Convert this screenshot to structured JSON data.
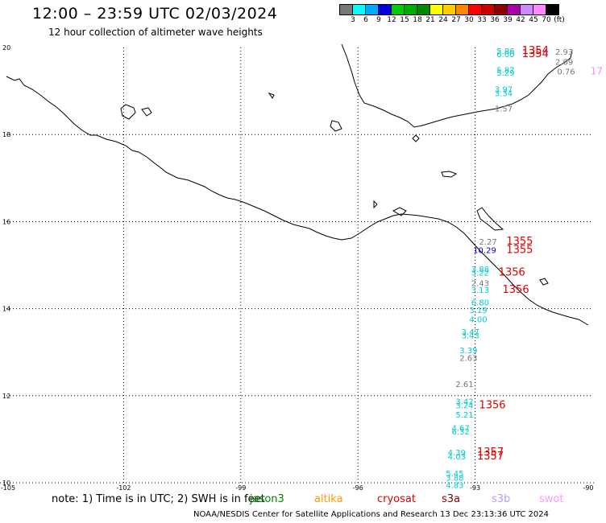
{
  "title": "12:00 – 23:59 UTC 02/03/2024",
  "subtitle": "12 hour collection of altimeter wave heights",
  "scale": {
    "unit": "(ft)",
    "colors": [
      "#777777",
      "#00ffff",
      "#00aaff",
      "#0000dd",
      "#00cc00",
      "#00aa00",
      "#008800",
      "#ffff00",
      "#ffcc00",
      "#ff8800",
      "#ff0000",
      "#cc0000",
      "#880000",
      "#aa00aa",
      "#cc88ff",
      "#ff88ff",
      "#000000"
    ],
    "labels": [
      "3",
      "6",
      "9",
      "12",
      "15",
      "18",
      "21",
      "24",
      "27",
      "30",
      "33",
      "36",
      "39",
      "42",
      "45",
      "70"
    ]
  },
  "map": {
    "lon_labels": [
      "-105",
      "-102",
      "-99",
      "-96",
      "-93",
      "-90"
    ],
    "lat_labels": [
      "20",
      "18",
      "16",
      "14",
      "12",
      "10"
    ]
  },
  "observations": [
    {
      "text": "5.86",
      "lon": -92.45,
      "lat": 19.85,
      "color": "#00cccc"
    },
    {
      "text": "6.00",
      "lon": -92.45,
      "lat": 19.78,
      "color": "#00cccc"
    },
    {
      "text": "1354",
      "lon": -91.8,
      "lat": 19.85,
      "color": "#dd0000"
    },
    {
      "text": "1354",
      "lon": -91.8,
      "lat": 19.78,
      "color": "#dd0000"
    },
    {
      "text": "2.93",
      "lon": -90.95,
      "lat": 19.83,
      "color": "#777777"
    },
    {
      "text": "2.09",
      "lon": -90.95,
      "lat": 19.6,
      "color": "#777777"
    },
    {
      "text": "0.76",
      "lon": -90.9,
      "lat": 19.38,
      "color": "#777777"
    },
    {
      "text": "17",
      "lon": -90.05,
      "lat": 19.38,
      "color": "#ff88ff"
    },
    {
      "text": "5.87",
      "lon": -92.45,
      "lat": 19.42,
      "color": "#00cccc"
    },
    {
      "text": "5.29",
      "lon": -92.45,
      "lat": 19.35,
      "color": "#00cccc"
    },
    {
      "text": "3.97",
      "lon": -92.5,
      "lat": 18.97,
      "color": "#00cccc"
    },
    {
      "text": "3.34",
      "lon": -92.5,
      "lat": 18.88,
      "color": "#00cccc"
    },
    {
      "text": "1.57",
      "lon": -92.5,
      "lat": 18.53,
      "color": "#777777"
    },
    {
      "text": "2.27",
      "lon": -92.9,
      "lat": 15.47,
      "color": "#777777"
    },
    {
      "text": "1355",
      "lon": -92.2,
      "lat": 15.47,
      "color": "#dd0000"
    },
    {
      "text": "10.29",
      "lon": -93.05,
      "lat": 15.28,
      "color": "#0000cc"
    },
    {
      "text": "1355",
      "lon": -92.2,
      "lat": 15.28,
      "color": "#dd0000"
    },
    {
      "text": "3.88",
      "lon": -93.1,
      "lat": 14.84,
      "color": "#00cccc"
    },
    {
      "text": "3.22",
      "lon": -93.1,
      "lat": 14.76,
      "color": "#00cccc"
    },
    {
      "text": "1356",
      "lon": -92.4,
      "lat": 14.76,
      "color": "#dd0000"
    },
    {
      "text": "2.43",
      "lon": -93.1,
      "lat": 14.52,
      "color": "#777777"
    },
    {
      "text": "3.13",
      "lon": -93.1,
      "lat": 14.36,
      "color": "#00cccc"
    },
    {
      "text": "1356",
      "lon": -92.3,
      "lat": 14.36,
      "color": "#dd0000"
    },
    {
      "text": "6.80",
      "lon": -93.1,
      "lat": 14.08,
      "color": "#00cccc"
    },
    {
      "text": "3.19",
      "lon": -93.15,
      "lat": 13.9,
      "color": "#00cccc"
    },
    {
      "text": "4.00",
      "lon": -93.15,
      "lat": 13.69,
      "color": "#00cccc"
    },
    {
      "text": "3.47",
      "lon": -93.35,
      "lat": 13.4,
      "color": "#00cccc"
    },
    {
      "text": "3.43",
      "lon": -93.35,
      "lat": 13.32,
      "color": "#00cccc"
    },
    {
      "text": "3.39",
      "lon": -93.4,
      "lat": 12.98,
      "color": "#00cccc"
    },
    {
      "text": "2.63",
      "lon": -93.4,
      "lat": 12.8,
      "color": "#777777"
    },
    {
      "text": "2.61",
      "lon": -93.5,
      "lat": 12.2,
      "color": "#777777"
    },
    {
      "text": "3.42",
      "lon": -93.5,
      "lat": 11.8,
      "color": "#00cccc"
    },
    {
      "text": "3.24",
      "lon": -93.5,
      "lat": 11.71,
      "color": "#00cccc"
    },
    {
      "text": "1356",
      "lon": -92.9,
      "lat": 11.71,
      "color": "#dd0000"
    },
    {
      "text": "5.21",
      "lon": -93.5,
      "lat": 11.5,
      "color": "#00cccc"
    },
    {
      "text": "4.67",
      "lon": -93.6,
      "lat": 11.19,
      "color": "#00cccc"
    },
    {
      "text": "6.32",
      "lon": -93.6,
      "lat": 11.11,
      "color": "#00cccc"
    },
    {
      "text": "4.39",
      "lon": -93.7,
      "lat": 10.63,
      "color": "#00cccc"
    },
    {
      "text": "1357",
      "lon": -92.95,
      "lat": 10.63,
      "color": "#dd0000"
    },
    {
      "text": "4.03",
      "lon": -93.7,
      "lat": 10.54,
      "color": "#00cccc"
    },
    {
      "text": "1357",
      "lon": -92.95,
      "lat": 10.54,
      "color": "#dd0000"
    },
    {
      "text": "5.45",
      "lon": -93.75,
      "lat": 10.15,
      "color": "#00cccc"
    },
    {
      "text": "3.88",
      "lon": -93.75,
      "lat": 10.05,
      "color": "#00cccc"
    },
    {
      "text": "4.83",
      "lon": -93.75,
      "lat": 9.88,
      "color": "#00cccc"
    }
  ],
  "footer": {
    "note": "note: 1) Time is in UTC; 2) SWH is in feet",
    "satellites": [
      {
        "name": "jason3",
        "color": "#008800"
      },
      {
        "name": "altika",
        "color": "#ff9900"
      },
      {
        "name": "cryosat",
        "color": "#dd0000"
      },
      {
        "name": "s3a",
        "color": "#880000"
      },
      {
        "name": "s3b",
        "color": "#bb99ff"
      },
      {
        "name": "swot",
        "color": "#ff99ff"
      }
    ],
    "credit": "NOAA/NESDIS Center for Satellite Applications and Research   13 Dec 23:13:36 UTC 2024"
  }
}
